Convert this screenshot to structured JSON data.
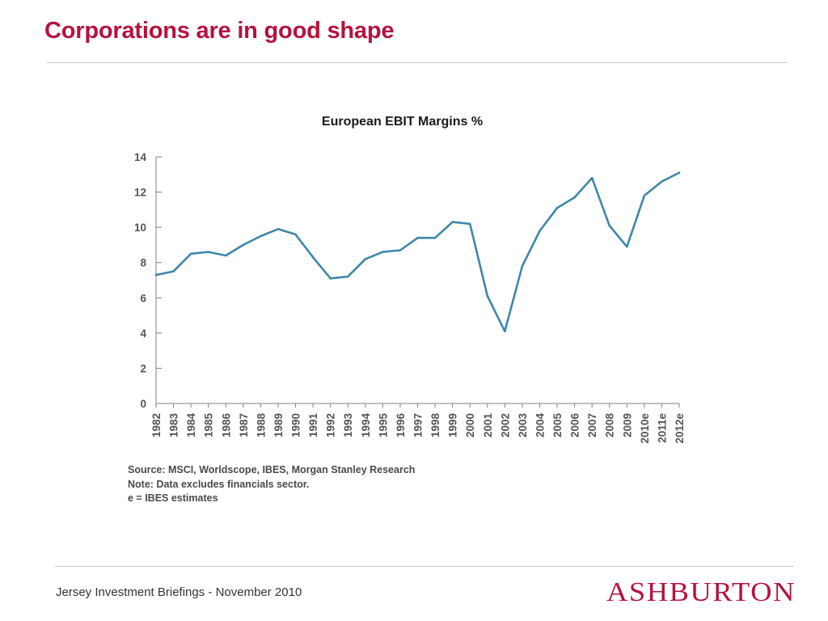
{
  "slide": {
    "title": "Corporations are in good shape",
    "footer": "Jersey Investment Briefings - November 2010",
    "logo_text": "ASHBURTON"
  },
  "colors": {
    "title": "#b5123e",
    "line": "#3f87aa",
    "axis": "#808080",
    "logo": "#b5123e"
  },
  "chart_data": {
    "type": "line",
    "title": "European EBIT Margins %",
    "xlabel": "",
    "ylabel": "",
    "ylim": [
      0,
      14
    ],
    "yticks": [
      0,
      2,
      4,
      6,
      8,
      10,
      12,
      14
    ],
    "grid": false,
    "categories": [
      "1982",
      "1983",
      "1984",
      "1985",
      "1986",
      "1987",
      "1988",
      "1989",
      "1990",
      "1991",
      "1992",
      "1993",
      "1994",
      "1995",
      "1996",
      "1997",
      "1998",
      "1999",
      "2000",
      "2001",
      "2002",
      "2003",
      "2004",
      "2005",
      "2006",
      "2007",
      "2008",
      "2009",
      "2010e",
      "2011e",
      "2012e"
    ],
    "series": [
      {
        "values": [
          7.3,
          7.5,
          8.5,
          8.6,
          8.4,
          9.0,
          9.5,
          9.9,
          9.6,
          8.3,
          7.1,
          7.2,
          8.2,
          8.6,
          8.7,
          9.4,
          9.4,
          10.3,
          10.2,
          6.1,
          4.1,
          7.8,
          9.8,
          11.1,
          11.7,
          12.8,
          10.1,
          8.9,
          11.8,
          12.6,
          13.1
        ]
      }
    ]
  },
  "notes": [
    "Source: MSCI, Worldscope, IBES, Morgan Stanley Research",
    "Note: Data excludes financials sector.",
    "e = IBES estimates"
  ]
}
